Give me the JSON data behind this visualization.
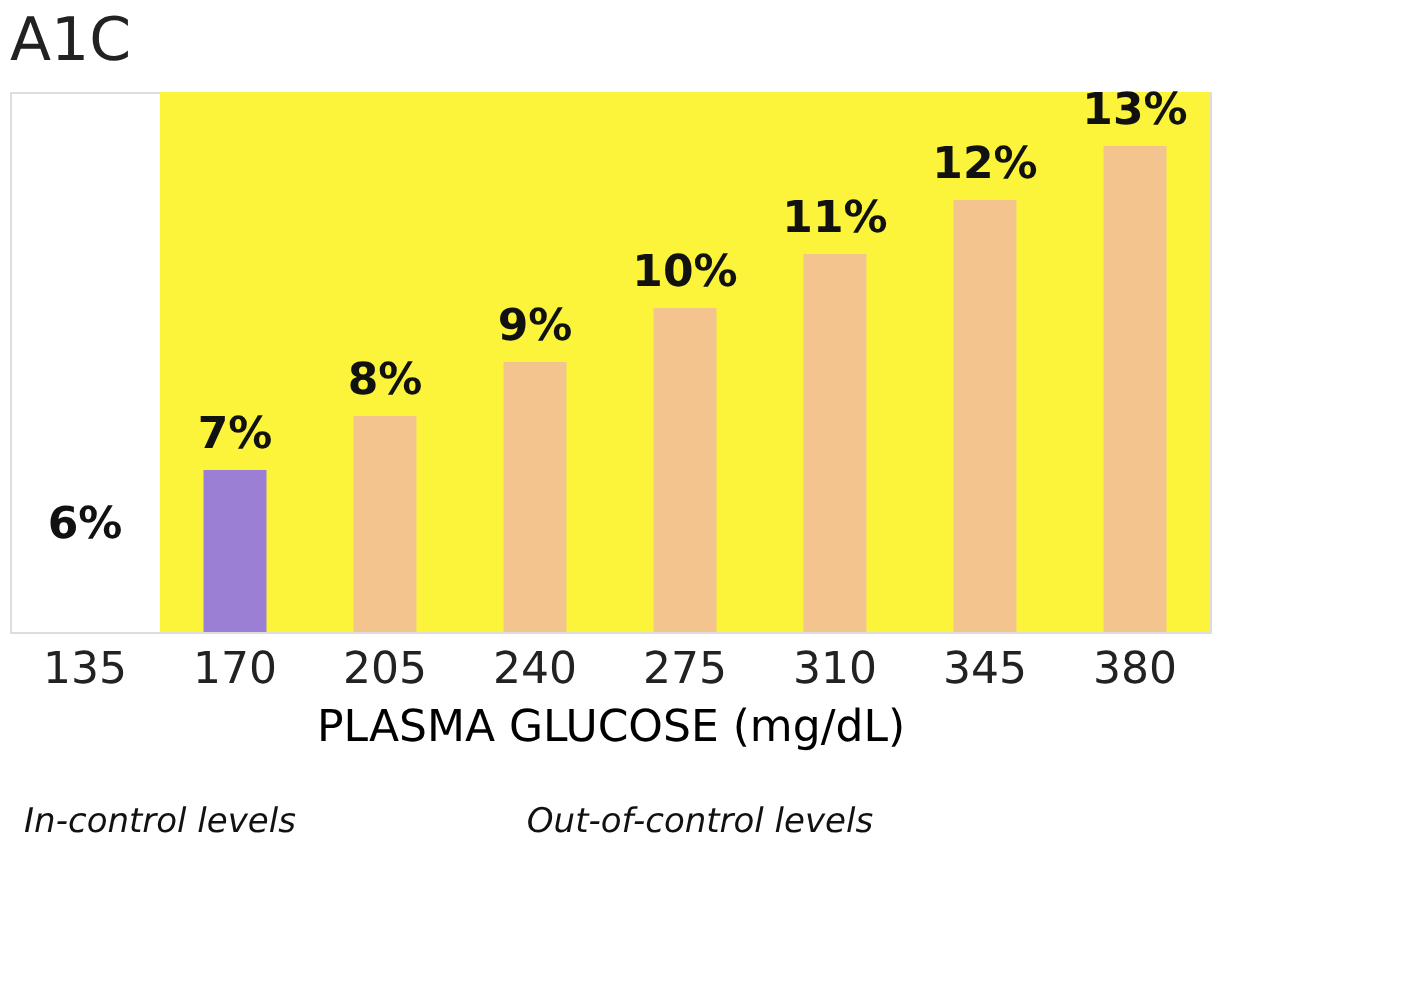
{
  "chart_data": {
    "type": "bar",
    "title": "A1C",
    "xlabel": "PLASMA GLUCOSE (mg/dL)",
    "categories": [
      "135",
      "170",
      "205",
      "240",
      "275",
      "310",
      "345",
      "380"
    ],
    "values": [
      null,
      7,
      8,
      9,
      10,
      11,
      12,
      13
    ],
    "value_labels": [
      null,
      "7%",
      "8%",
      "9%",
      "10%",
      "11%",
      "12%",
      "13%"
    ],
    "colors": [
      "#f4c48f",
      "#9b7fd4",
      "#f4c48f",
      "#f4c48f",
      "#f4c48f",
      "#f4c48f",
      "#f4c48f",
      "#f4c48f"
    ],
    "ylim": [
      4,
      14
    ],
    "tick_labels": "x",
    "grid": false,
    "bands": [
      {
        "axis": "x",
        "from": "170",
        "to": "380",
        "color": "#fbf43a",
        "label": null
      }
    ],
    "annotations": [
      "6%",
      "In-control levels",
      "Out-of-control levels"
    ]
  }
}
